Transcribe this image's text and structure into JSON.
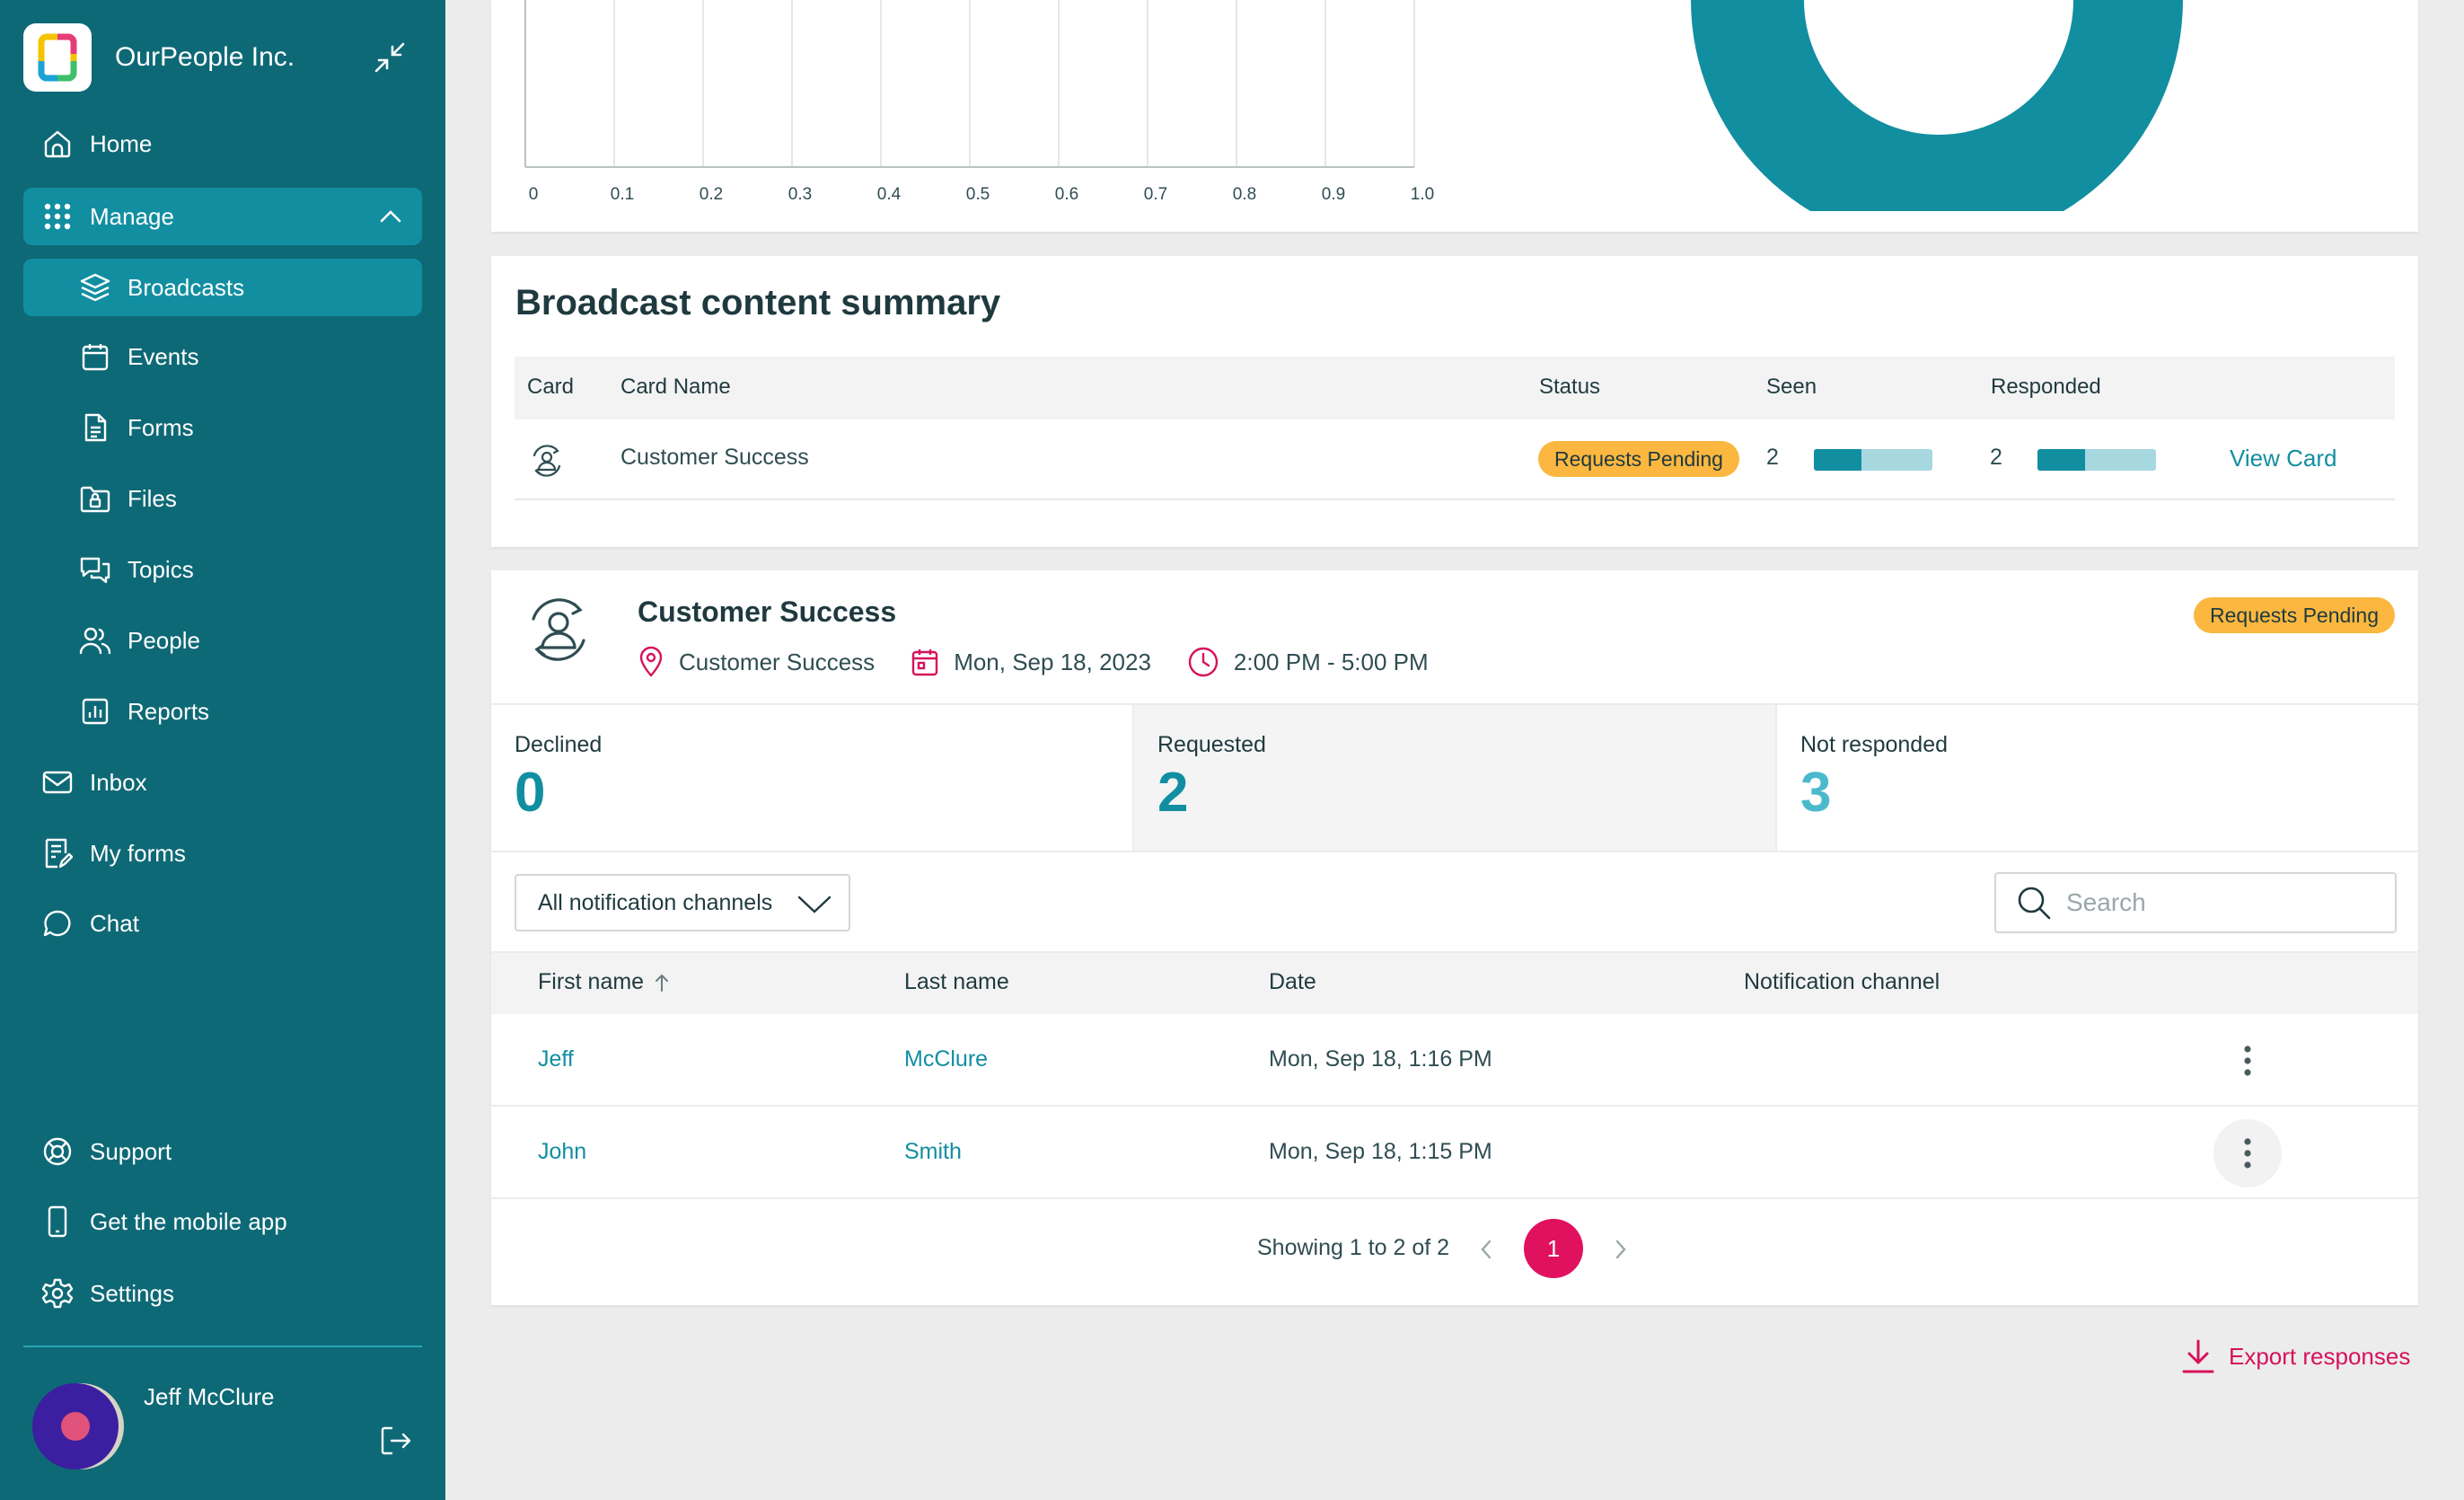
{
  "app": {
    "org_name": "OurPeople Inc."
  },
  "sidebar": {
    "items": [
      {
        "label": "Home",
        "icon": "home-icon"
      },
      {
        "label": "Manage",
        "icon": "grid-icon"
      },
      {
        "label": "Broadcasts",
        "icon": "layers-icon"
      },
      {
        "label": "Events",
        "icon": "calendar-icon"
      },
      {
        "label": "Forms",
        "icon": "document-icon"
      },
      {
        "label": "Files",
        "icon": "folder-lock-icon"
      },
      {
        "label": "Topics",
        "icon": "chat-bubbles-icon"
      },
      {
        "label": "People",
        "icon": "people-icon"
      },
      {
        "label": "Reports",
        "icon": "bar-chart-icon"
      },
      {
        "label": "Inbox",
        "icon": "envelope-icon"
      },
      {
        "label": "My forms",
        "icon": "form-icon"
      },
      {
        "label": "Chat",
        "icon": "chat-icon"
      },
      {
        "label": "Support",
        "icon": "lifebuoy-icon"
      },
      {
        "label": "Get the mobile app",
        "icon": "phone-icon"
      },
      {
        "label": "Settings",
        "icon": "gear-icon"
      }
    ],
    "user": {
      "name": "Jeff McClure"
    }
  },
  "chart": {
    "x_ticks": [
      "0",
      "0.1",
      "0.2",
      "0.3",
      "0.4",
      "0.5",
      "0.6",
      "0.7",
      "0.8",
      "0.9",
      "1.0"
    ],
    "colors": {
      "donut": "#128ea1"
    }
  },
  "summary": {
    "title": "Broadcast content summary",
    "columns": {
      "card": "Card",
      "card_name": "Card Name",
      "status": "Status",
      "seen": "Seen",
      "responded": "Responded"
    },
    "row": {
      "card_name": "Customer Success",
      "status": "Requests Pending",
      "seen": "2",
      "seen_fraction": 0.4,
      "responded": "2",
      "responded_fraction": 0.4,
      "action": "View Card"
    }
  },
  "detail": {
    "title": "Customer Success",
    "status": "Requests Pending",
    "location": "Customer Success",
    "date": "Mon, Sep 18, 2023",
    "time": "2:00 PM - 5:00 PM",
    "stats": [
      {
        "label": "Declined",
        "value": "0"
      },
      {
        "label": "Requested",
        "value": "2"
      },
      {
        "label": "Not responded",
        "value": "3"
      }
    ],
    "filter": "All notification channels",
    "search_placeholder": "Search",
    "columns": {
      "first_name": "First name",
      "last_name": "Last name",
      "date": "Date",
      "channel": "Notification channel"
    },
    "rows": [
      {
        "first_name": "Jeff",
        "last_name": "McClure",
        "date": "Mon, Sep 18, 1:16 PM",
        "channel": ""
      },
      {
        "first_name": "John",
        "last_name": "Smith",
        "date": "Mon, Sep 18, 1:15 PM",
        "channel": ""
      }
    ],
    "pagination": {
      "summary": "Showing 1 to 2 of 2",
      "current_page": "1"
    }
  },
  "export_label": "Export responses",
  "colors": {
    "sidebar": "#0e6976",
    "accent": "#128ea1",
    "badge": "#fbb73f",
    "pink": "#e0115f"
  }
}
